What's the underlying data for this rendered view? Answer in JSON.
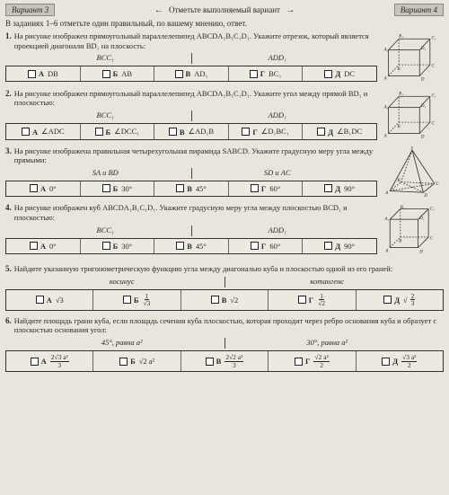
{
  "header": {
    "variant_left": "Вариант 3",
    "center_text": "Отметьте выполняемый вариант",
    "variant_right": "Вариант 4"
  },
  "instruction": "В заданиях 1–6 отметьте один правильный, по вашему мнению, ответ.",
  "tasks": [
    {
      "num": "1.",
      "text": "На рисунке изображен прямоугольный параллелепипед ABCDA₁B₁C₁D₁. Укажите отрезок, который является проекцией диагонали BD₁ на плоскость:",
      "labels": [
        "BCC₁",
        "ADD₁"
      ],
      "answers": [
        {
          "letter": "А",
          "val": "DB"
        },
        {
          "letter": "Б",
          "val": "AB"
        },
        {
          "letter": "В",
          "val": "AD₁"
        },
        {
          "letter": "Г",
          "val": "BC₁"
        },
        {
          "letter": "Д",
          "val": "DC"
        }
      ],
      "figure": "box"
    },
    {
      "num": "2.",
      "text": "На рисунке изображен прямоугольный параллелепипед ABCDA₁B₁C₁D₁. Укажите угол между прямой BD₁ и плоскостью:",
      "labels": [
        "BCC₁",
        "ADD₁"
      ],
      "answers": [
        {
          "letter": "А",
          "val": "∠ADC"
        },
        {
          "letter": "Б",
          "val": "∠DCC₁"
        },
        {
          "letter": "В",
          "val": "∠AD₁B"
        },
        {
          "letter": "Г",
          "val": "∠D₁BC₁"
        },
        {
          "letter": "Д",
          "val": "∠B₁DC"
        }
      ],
      "figure": "box"
    },
    {
      "num": "3.",
      "text": "На рисунке изображена правильная четырехугольная пирамида SABCD. Укажите градусную меру угла между прямыми:",
      "labels": [
        "SA и BD",
        "SD и AC"
      ],
      "answers": [
        {
          "letter": "А",
          "val": "0°"
        },
        {
          "letter": "Б",
          "val": "30°"
        },
        {
          "letter": "В",
          "val": "45°"
        },
        {
          "letter": "Г",
          "val": "60°"
        },
        {
          "letter": "Д",
          "val": "90°"
        }
      ],
      "figure": "pyramid"
    },
    {
      "num": "4.",
      "text": "На рисунке изображен куб ABCDA₁B₁C₁D₁. Укажите градусную меру угла между плоскостью BCD₁ и плоскостью:",
      "labels": [
        "BCC₁",
        "ADD₁"
      ],
      "answers": [
        {
          "letter": "А",
          "val": "0°"
        },
        {
          "letter": "Б",
          "val": "30°"
        },
        {
          "letter": "В",
          "val": "45°"
        },
        {
          "letter": "Г",
          "val": "60°"
        },
        {
          "letter": "Д",
          "val": "90°"
        }
      ],
      "figure": "cube"
    },
    {
      "num": "5.",
      "text": "Найдите указанную тригонометрическую функцию угла между диагональю куба и плоскостью одной из его граней:",
      "labels": [
        "косинус",
        "котангенс"
      ],
      "answers": [
        {
          "letter": "А",
          "val": "√3"
        },
        {
          "letter": "Б",
          "val": "1/√3",
          "frac": {
            "n": "1",
            "d": "√3"
          }
        },
        {
          "letter": "В",
          "val": "√2"
        },
        {
          "letter": "Г",
          "val": "1/√2",
          "frac": {
            "n": "1",
            "d": "√2"
          }
        },
        {
          "letter": "Д",
          "val": "√(2/3)",
          "sqrtfrac": {
            "n": "2",
            "d": "3"
          }
        }
      ],
      "figure": null
    },
    {
      "num": "6.",
      "text": "Найдите площадь грани куба, если площадь сечения куба плоскостью, которая проходит через ребро основания куба и образует с плоскостью основания угол:",
      "labels": [
        "45°, равна a²",
        "30°, равна a²"
      ],
      "answers": [
        {
          "letter": "А",
          "frac": {
            "n": "2√3 a²",
            "d": "3"
          }
        },
        {
          "letter": "Б",
          "frac": {
            "n": "√2 a²",
            "d": ""
          },
          "plain": "√2 a²"
        },
        {
          "letter": "В",
          "frac": {
            "n": "2√2 a²",
            "d": "3"
          }
        },
        {
          "letter": "Г",
          "frac": {
            "n": "√2 a²",
            "d": "2"
          }
        },
        {
          "letter": "Д",
          "frac": {
            "n": "√3 a²",
            "d": "2"
          }
        }
      ],
      "figure": null
    }
  ],
  "colors": {
    "page_bg": "#e8e5dd",
    "border": "#333333",
    "text": "#2a2a2a"
  }
}
